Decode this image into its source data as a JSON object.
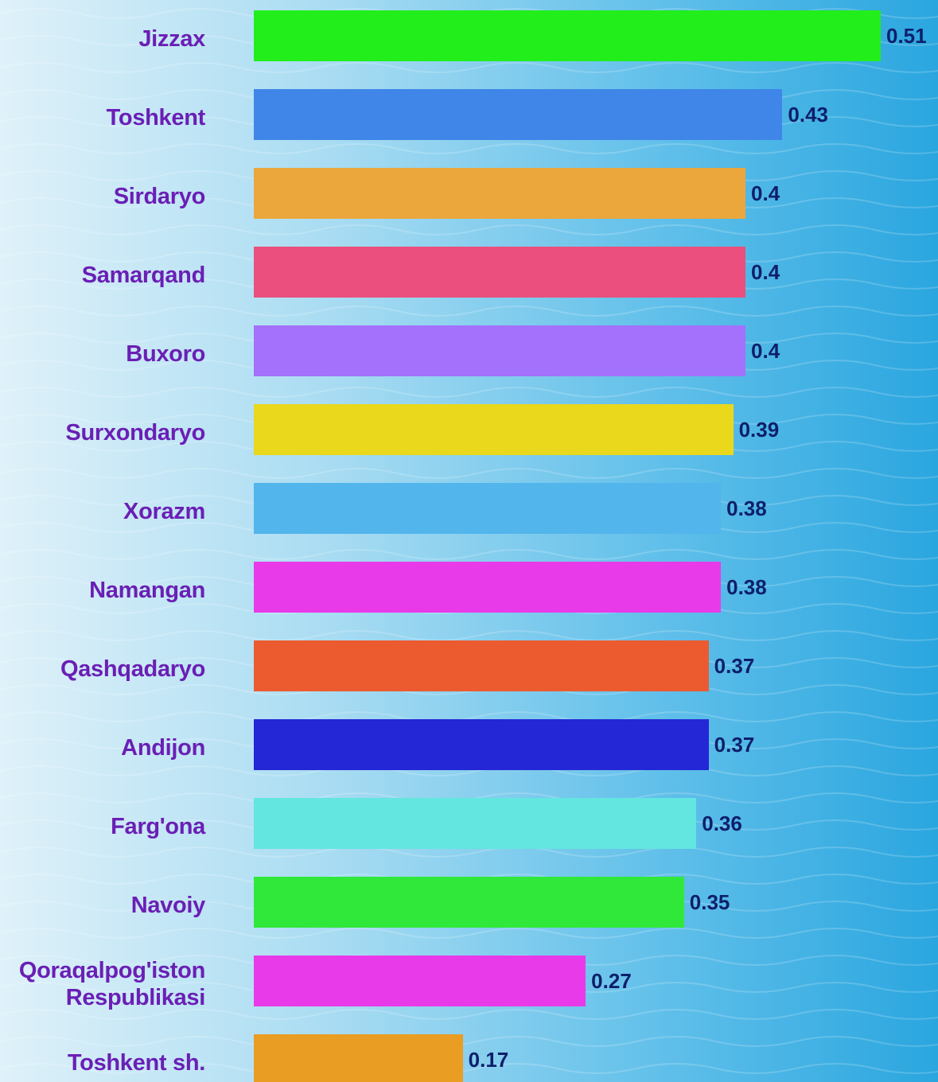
{
  "chart_data": {
    "type": "bar",
    "orientation": "horizontal",
    "categories": [
      "Jizzax",
      "Toshkent",
      "Sirdaryo",
      "Samarqand",
      "Buxoro",
      "Surxondaryo",
      "Xorazm",
      "Namangan",
      "Qashqadaryo",
      "Andijon",
      "Farg'ona",
      "Navoiy",
      "Qoraqalpog'iston Respublikasi",
      "Toshkent sh."
    ],
    "values": [
      0.51,
      0.43,
      0.4,
      0.4,
      0.4,
      0.39,
      0.38,
      0.38,
      0.37,
      0.37,
      0.36,
      0.35,
      0.27,
      0.17
    ],
    "colors": [
      "#22ee1c",
      "#3f86e8",
      "#eba63c",
      "#ea4f7d",
      "#a371fb",
      "#e9d81b",
      "#52b5ec",
      "#e93ae9",
      "#ec5b30",
      "#2427d6",
      "#62e6df",
      "#30e83a",
      "#e93ae9",
      "#e99d22"
    ]
  }
}
